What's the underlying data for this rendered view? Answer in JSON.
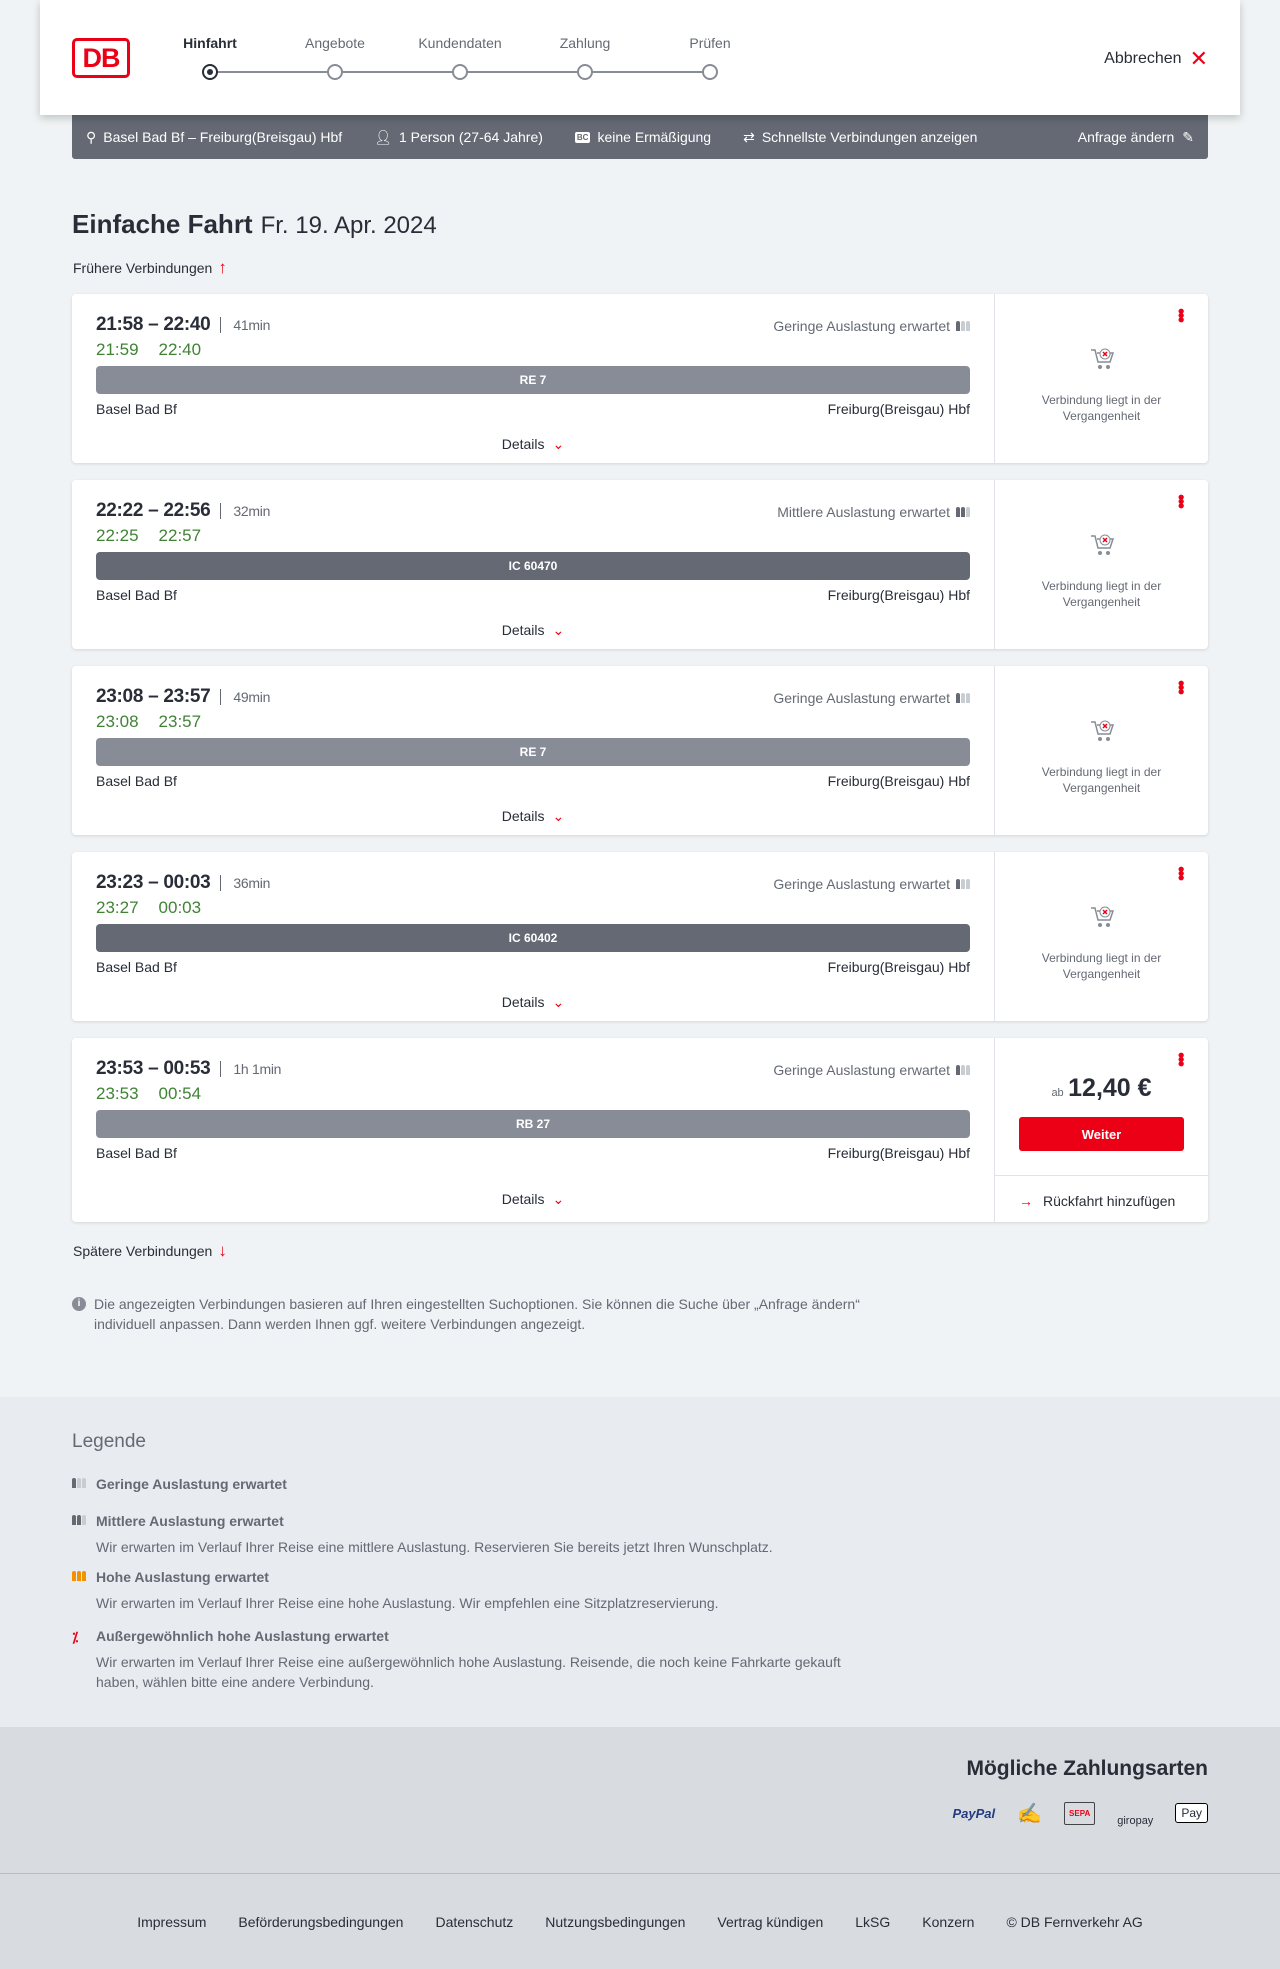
{
  "header": {
    "logo": "DB",
    "steps": [
      {
        "label": "Hinfahrt",
        "active": true
      },
      {
        "label": "Angebote"
      },
      {
        "label": "Kundendaten"
      },
      {
        "label": "Zahlung"
      },
      {
        "label": "Prüfen"
      }
    ],
    "cancel": "Abbrechen"
  },
  "summary": {
    "route": "Basel Bad Bf – Freiburg(Breisgau) Hbf",
    "persons": "1 Person (27-64 Jahre)",
    "discount_badge": "BC",
    "discount": "keine Ermäßigung",
    "fastest": "Schnellste Verbindungen anzeigen",
    "edit": "Anfrage ändern"
  },
  "title": {
    "main": "Einfache Fahrt",
    "date": "Fr. 19. Apr. 2024"
  },
  "earlier": "Frühere Verbindungen",
  "later": "Spätere Verbindungen",
  "connections": [
    {
      "planned": "21:58 – 22:40",
      "duration": "41min",
      "rt_dep": "21:59",
      "rt_arr": "22:40",
      "load": "Geringe Auslastung erwartet",
      "load_level": 1,
      "train": "RE 7",
      "train_color": "#878c96",
      "from": "Basel Bad Bf",
      "to": "Freiburg(Breisgau) Hbf",
      "details": "Details",
      "status": "Verbindung liegt in der Vergangenheit"
    },
    {
      "planned": "22:22 – 22:56",
      "duration": "32min",
      "rt_dep": "22:25",
      "rt_arr": "22:57",
      "load": "Mittlere Auslastung erwartet",
      "load_level": 2,
      "train": "IC 60470",
      "train_color": "#646973",
      "from": "Basel Bad Bf",
      "to": "Freiburg(Breisgau) Hbf",
      "details": "Details",
      "status": "Verbindung liegt in der Vergangenheit"
    },
    {
      "planned": "23:08 – 23:57",
      "duration": "49min",
      "rt_dep": "23:08",
      "rt_arr": "23:57",
      "load": "Geringe Auslastung erwartet",
      "load_level": 1,
      "train": "RE 7",
      "train_color": "#878c96",
      "from": "Basel Bad Bf",
      "to": "Freiburg(Breisgau) Hbf",
      "details": "Details",
      "status": "Verbindung liegt in der Vergangenheit"
    },
    {
      "planned": "23:23 – 00:03",
      "duration": "36min",
      "rt_dep": "23:27",
      "rt_arr": "00:03",
      "load": "Geringe Auslastung erwartet",
      "load_level": 1,
      "train": "IC 60402",
      "train_color": "#646973",
      "from": "Basel Bad Bf",
      "to": "Freiburg(Breisgau) Hbf",
      "details": "Details",
      "status": "Verbindung liegt in der Vergangenheit"
    },
    {
      "planned": "23:53 – 00:53",
      "duration": "1h 1min",
      "rt_dep": "23:53",
      "rt_arr": "00:54",
      "load": "Geringe Auslastung erwartet",
      "load_level": 1,
      "train": "RB 27",
      "train_color": "#878c96",
      "from": "Basel Bad Bf",
      "to": "Freiburg(Breisgau) Hbf",
      "details": "Details",
      "price_prefix": "ab",
      "price": "12,40 €",
      "button": "Weiter",
      "return": "Rückfahrt hinzufügen"
    }
  ],
  "info": "Die angezeigten Verbindungen basieren auf Ihren eingestellten Suchoptionen. Sie können die Suche über „Anfrage ändern“ individuell anpassen. Dann werden Ihnen ggf. weitere Verbindungen angezeigt.",
  "legend": {
    "title": "Legende",
    "items": [
      {
        "title": "Geringe Auslastung erwartet",
        "text": ""
      },
      {
        "title": "Mittlere Auslastung erwartet",
        "text": "Wir erwarten im Verlauf Ihrer Reise eine mittlere Auslastung. Reservieren Sie bereits jetzt Ihren Wunschplatz."
      },
      {
        "title": "Hohe Auslastung erwartet",
        "text": "Wir erwarten im Verlauf Ihrer Reise eine hohe Auslastung. Wir empfehlen eine Sitzplatzreservierung."
      },
      {
        "title": "Außergewöhnlich hohe Auslastung erwartet",
        "text": "Wir erwarten im Verlauf Ihrer Reise eine außergewöhnlich hohe Auslastung. Reisende, die noch keine Fahrkarte gekauft haben, wählen bitte eine andere Verbindung."
      }
    ]
  },
  "payment": {
    "title": "Mögliche Zahlungsarten",
    "methods": [
      "PayPal",
      "Lastschrift",
      "SEPA",
      "giropay",
      "Pay"
    ]
  },
  "footer": [
    "Impressum",
    "Beförderungsbedingungen",
    "Datenschutz",
    "Nutzungsbedingungen",
    "Vertrag kündigen",
    "LkSG",
    "Konzern",
    "© DB Fernverkehr AG"
  ],
  "colors": {
    "accent": "#ec0016",
    "realtime": "#408335",
    "summary_bar": "#646973"
  }
}
